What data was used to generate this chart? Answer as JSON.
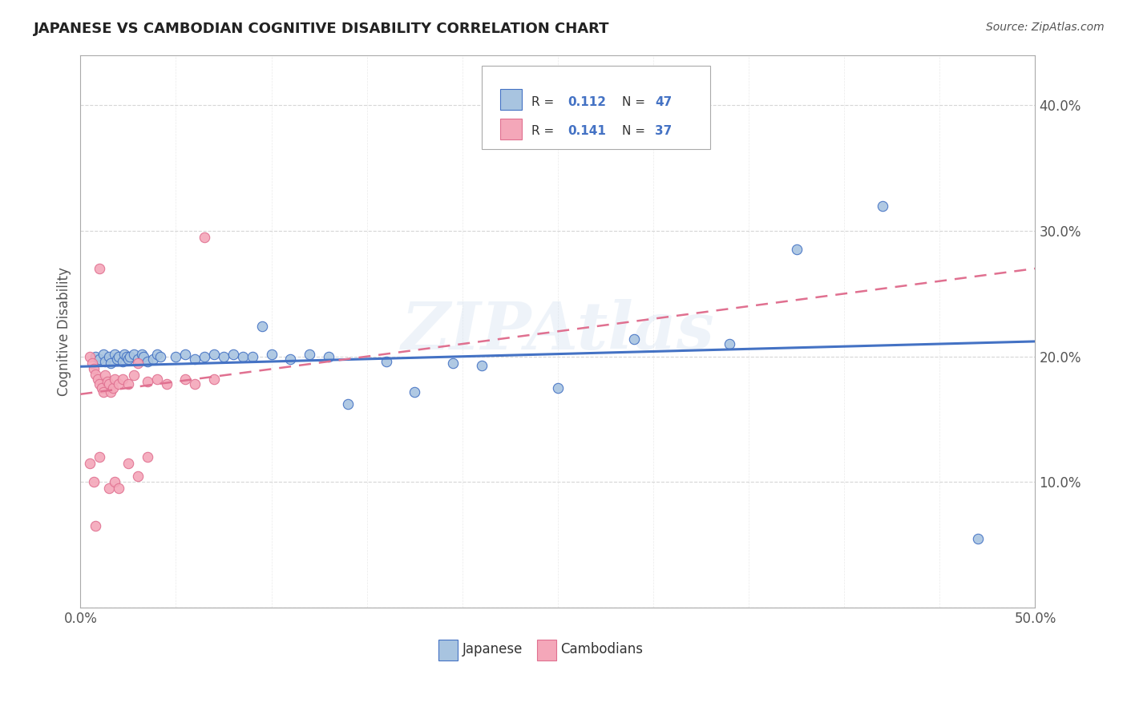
{
  "title": "JAPANESE VS CAMBODIAN COGNITIVE DISABILITY CORRELATION CHART",
  "source": "Source: ZipAtlas.com",
  "ylabel": "Cognitive Disability",
  "xlim": [
    0.0,
    0.5
  ],
  "ylim": [
    0.0,
    0.44
  ],
  "xticks": [
    0.0,
    0.05,
    0.1,
    0.15,
    0.2,
    0.25,
    0.3,
    0.35,
    0.4,
    0.45,
    0.5
  ],
  "yticks": [
    0.0,
    0.1,
    0.2,
    0.3,
    0.4
  ],
  "watermark": "ZIPAtlas",
  "japanese_color": "#a8c4e0",
  "cambodian_color": "#f4a7b9",
  "japanese_line_color": "#4472c4",
  "cambodian_line_color": "#e07090",
  "R_japanese": 0.112,
  "N_japanese": 47,
  "R_cambodian": 0.141,
  "N_cambodian": 37,
  "japanese_scatter": [
    [
      0.008,
      0.2
    ],
    [
      0.01,
      0.198
    ],
    [
      0.012,
      0.202
    ],
    [
      0.013,
      0.196
    ],
    [
      0.015,
      0.2
    ],
    [
      0.016,
      0.195
    ],
    [
      0.018,
      0.202
    ],
    [
      0.019,
      0.198
    ],
    [
      0.02,
      0.2
    ],
    [
      0.022,
      0.196
    ],
    [
      0.023,
      0.202
    ],
    [
      0.024,
      0.2
    ],
    [
      0.025,
      0.198
    ],
    [
      0.026,
      0.2
    ],
    [
      0.028,
      0.202
    ],
    [
      0.03,
      0.198
    ],
    [
      0.032,
      0.202
    ],
    [
      0.033,
      0.2
    ],
    [
      0.035,
      0.196
    ],
    [
      0.038,
      0.198
    ],
    [
      0.04,
      0.202
    ],
    [
      0.042,
      0.2
    ],
    [
      0.05,
      0.2
    ],
    [
      0.055,
      0.202
    ],
    [
      0.06,
      0.198
    ],
    [
      0.065,
      0.2
    ],
    [
      0.07,
      0.202
    ],
    [
      0.075,
      0.2
    ],
    [
      0.08,
      0.202
    ],
    [
      0.085,
      0.2
    ],
    [
      0.09,
      0.2
    ],
    [
      0.095,
      0.224
    ],
    [
      0.1,
      0.202
    ],
    [
      0.11,
      0.198
    ],
    [
      0.12,
      0.202
    ],
    [
      0.13,
      0.2
    ],
    [
      0.14,
      0.162
    ],
    [
      0.16,
      0.196
    ],
    [
      0.175,
      0.172
    ],
    [
      0.195,
      0.195
    ],
    [
      0.21,
      0.193
    ],
    [
      0.25,
      0.175
    ],
    [
      0.29,
      0.214
    ],
    [
      0.34,
      0.21
    ],
    [
      0.375,
      0.285
    ],
    [
      0.42,
      0.32
    ],
    [
      0.47,
      0.055
    ]
  ],
  "cambodian_scatter": [
    [
      0.005,
      0.2
    ],
    [
      0.006,
      0.195
    ],
    [
      0.007,
      0.19
    ],
    [
      0.008,
      0.186
    ],
    [
      0.009,
      0.182
    ],
    [
      0.01,
      0.178
    ],
    [
      0.011,
      0.175
    ],
    [
      0.012,
      0.172
    ],
    [
      0.013,
      0.185
    ],
    [
      0.014,
      0.18
    ],
    [
      0.015,
      0.178
    ],
    [
      0.016,
      0.172
    ],
    [
      0.017,
      0.175
    ],
    [
      0.018,
      0.182
    ],
    [
      0.02,
      0.178
    ],
    [
      0.022,
      0.182
    ],
    [
      0.025,
      0.178
    ],
    [
      0.028,
      0.185
    ],
    [
      0.03,
      0.195
    ],
    [
      0.035,
      0.18
    ],
    [
      0.04,
      0.182
    ],
    [
      0.045,
      0.178
    ],
    [
      0.055,
      0.182
    ],
    [
      0.06,
      0.178
    ],
    [
      0.065,
      0.295
    ],
    [
      0.07,
      0.182
    ],
    [
      0.01,
      0.27
    ],
    [
      0.005,
      0.115
    ],
    [
      0.007,
      0.1
    ],
    [
      0.01,
      0.12
    ],
    [
      0.015,
      0.095
    ],
    [
      0.018,
      0.1
    ],
    [
      0.02,
      0.095
    ],
    [
      0.008,
      0.065
    ],
    [
      0.025,
      0.115
    ],
    [
      0.03,
      0.105
    ],
    [
      0.035,
      0.12
    ]
  ],
  "background_color": "#ffffff",
  "grid_color": "#cccccc",
  "title_color": "#222222",
  "label_color": "#555555"
}
